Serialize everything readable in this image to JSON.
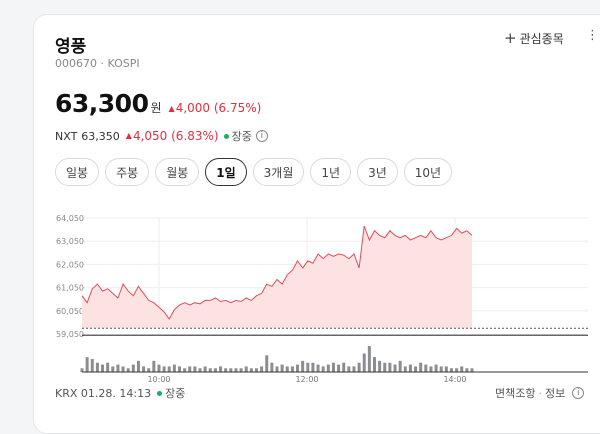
{
  "stock": {
    "name": "영풍",
    "code_market": "000670 · KOSPI",
    "price": "63,300",
    "unit": "원",
    "change": "4,000 (6.75%)"
  },
  "watchlist": {
    "label": "관심종목"
  },
  "nxt": {
    "label": "NXT",
    "price": "63,350",
    "change": "4,050 (6.83%)",
    "status": "장중"
  },
  "tabs": [
    "일봉",
    "주봉",
    "월봉",
    "1일",
    "3개월",
    "1년",
    "3년",
    "10년"
  ],
  "active_tab": "1일",
  "chart_data": {
    "type": "area",
    "y_ticks": [
      "64,050",
      "63,050",
      "62,050",
      "61,050",
      "60,050",
      "59,050"
    ],
    "x_ticks": [
      "10:00",
      "12:00",
      "14:00"
    ],
    "baseline": 59300,
    "ylim": [
      59050,
      64050
    ],
    "price_series": [
      60700,
      60400,
      61000,
      61200,
      60900,
      61000,
      60800,
      60600,
      61200,
      60900,
      60700,
      61100,
      60800,
      60500,
      60400,
      60200,
      60000,
      59700,
      60100,
      60300,
      60400,
      60300,
      60400,
      60350,
      60500,
      60500,
      60600,
      60450,
      60500,
      60400,
      60500,
      60450,
      60600,
      60500,
      60700,
      60800,
      61200,
      61100,
      61400,
      61200,
      61600,
      61800,
      62200,
      61900,
      62200,
      62100,
      62500,
      62300,
      62500,
      62400,
      62500,
      62450,
      62300,
      62500,
      61900,
      63700,
      63100,
      63500,
      63300,
      63200,
      63500,
      63300,
      63200,
      63300,
      63100,
      63200,
      63300,
      63200,
      63500,
      63200,
      63100,
      63200,
      63300,
      63600,
      63400,
      63500,
      63300
    ],
    "volume_series": [
      2,
      8,
      7,
      5,
      4,
      5,
      3,
      4,
      3,
      2,
      4,
      6,
      3,
      2,
      6,
      4,
      3,
      3,
      4,
      3,
      2,
      3,
      3,
      2,
      3,
      2,
      2,
      3,
      2,
      2,
      2,
      2,
      3,
      2,
      2,
      3,
      9,
      5,
      3,
      4,
      3,
      3,
      4,
      6,
      5,
      5,
      4,
      3,
      4,
      5,
      4,
      5,
      3,
      3,
      5,
      10,
      14,
      8,
      6,
      5,
      5,
      4,
      6,
      3,
      4,
      3,
      5,
      4,
      3,
      4,
      3,
      3,
      2,
      2,
      3,
      2,
      2
    ]
  },
  "footer": {
    "source_time": "KRX 01.28. 14:13",
    "status": "장중",
    "disclaimer": "면책조항",
    "info": "정보"
  }
}
